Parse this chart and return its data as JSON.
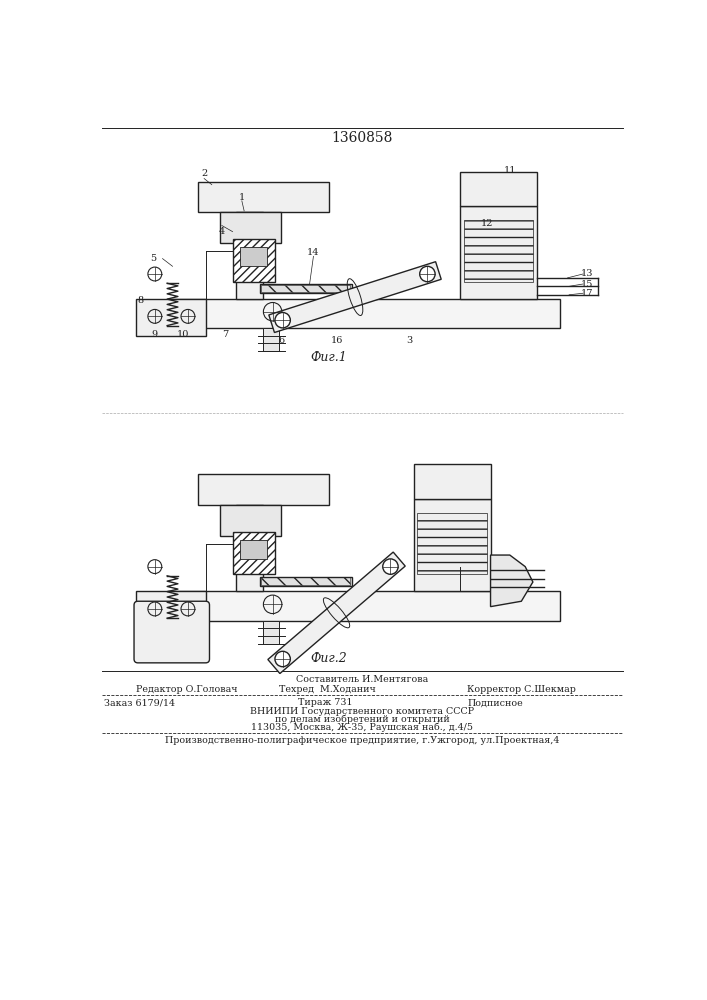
{
  "title": "1360858",
  "fig1_label": "Фиг.1",
  "fig2_label": "Фиг.2",
  "footer_line1_center_top": "Составитель И.Ментягова",
  "footer_line1_left": "Редактор О.Головач",
  "footer_line1_center": "Техред  М.Ходанич",
  "footer_line1_right": "Корректор С.Шекмар",
  "footer_line2_left": "Заказ 6179/14",
  "footer_line2_center": "Тираж 731",
  "footer_line2_right": "Подписное",
  "footer_line3": "ВНИИПИ Государственного комитета СССР",
  "footer_line4": "по делам изобретений и открытий",
  "footer_line5": "113035, Москва, Ж-35, Раушская наб., д.4/5",
  "footer_line6": "Производственно-полиграфическое предприятие, г.Ужгород, ул.Проектная,4",
  "bg_color": "#ffffff",
  "line_color": "#222222"
}
